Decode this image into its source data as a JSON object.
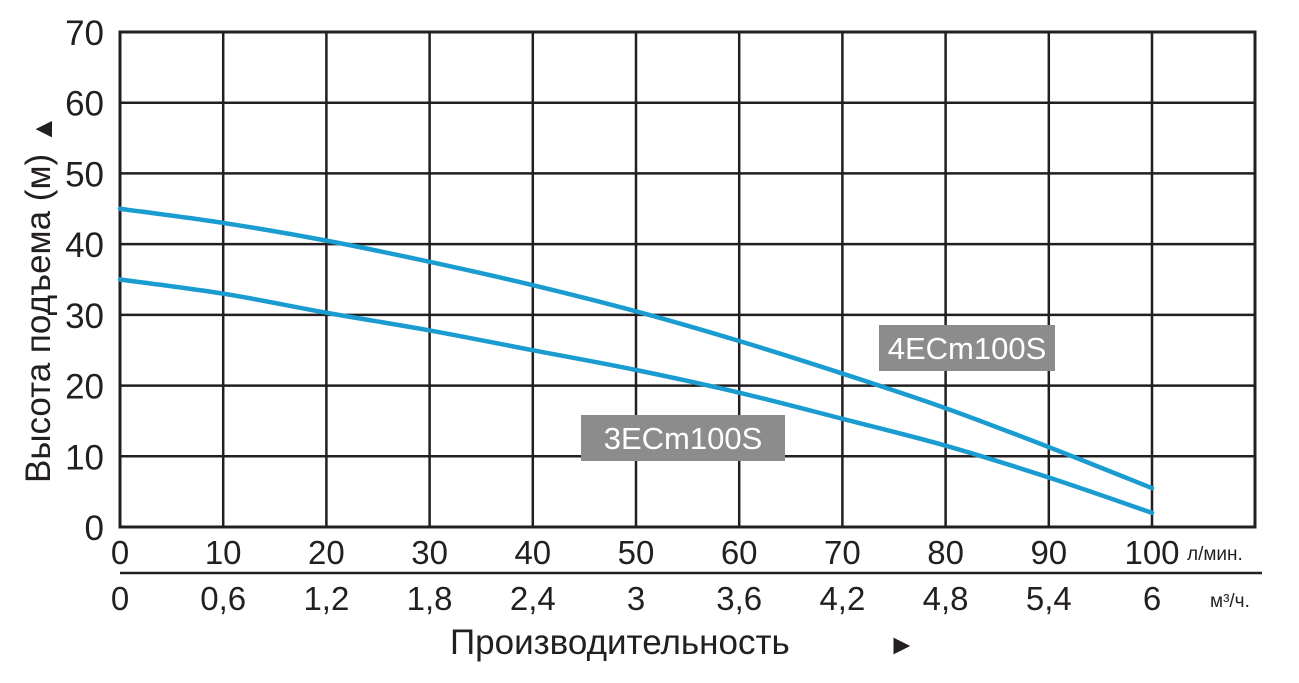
{
  "chart_data": {
    "type": "line",
    "ylabel": "Высота подъема (м)",
    "xlabel": "Производительность",
    "ylabel_arrow": "▲",
    "xlabel_arrow": "►",
    "ylim": [
      0,
      70
    ],
    "yticks": [
      "0",
      "10",
      "20",
      "30",
      "40",
      "50",
      "60",
      "70"
    ],
    "xlim": [
      0,
      100
    ],
    "x_unit": "л/мин.",
    "x2_unit": "м³/ч.",
    "x": [
      0,
      10,
      20,
      30,
      40,
      50,
      60,
      70,
      80,
      90,
      100
    ],
    "xticks": [
      "0",
      "10",
      "20",
      "30",
      "40",
      "50",
      "60",
      "70",
      "80",
      "90",
      "100"
    ],
    "x2ticks": [
      "0",
      "0,6",
      "1,2",
      "1,8",
      "2,4",
      "3",
      "3,6",
      "4,2",
      "4,8",
      "5,4",
      "6"
    ],
    "grid": true,
    "line_color": "#1b9cd0",
    "label_bg_color": "#8c8c8c",
    "series": [
      {
        "name": "4ECm100S",
        "values": [
          45,
          43,
          40.5,
          37.5,
          34.2,
          30.5,
          26.3,
          21.7,
          16.8,
          11.3,
          5.5
        ]
      },
      {
        "name": "3ECm100S",
        "values": [
          35,
          33,
          30.3,
          27.8,
          25,
          22.2,
          19,
          15.3,
          11.5,
          7,
          2
        ]
      }
    ]
  }
}
